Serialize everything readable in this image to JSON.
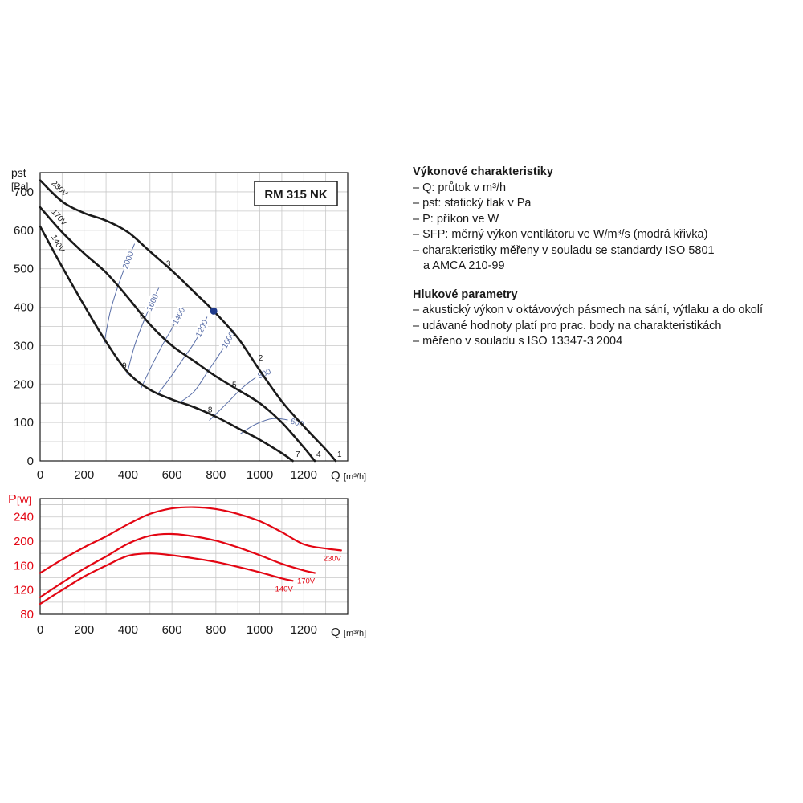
{
  "chart_data": [
    {
      "type": "line",
      "title": "RM 315 NK",
      "xlabel": "Q",
      "xunit": "[m³/h]",
      "ylabel": "pst",
      "yunit": "[Pa]",
      "xlim": [
        0,
        1400
      ],
      "ylim": [
        0,
        750
      ],
      "xticks": [
        0,
        200,
        400,
        600,
        800,
        1000,
        1200
      ],
      "yticks": [
        0,
        100,
        200,
        300,
        400,
        500,
        600,
        700
      ],
      "grid": true,
      "series": [
        {
          "name": "230V",
          "color": "#1a1a1a",
          "x": [
            0,
            100,
            200,
            300,
            400,
            500,
            600,
            700,
            790,
            900,
            1000,
            1100,
            1200,
            1300,
            1345
          ],
          "y": [
            730,
            675,
            645,
            625,
            595,
            545,
            495,
            440,
            390,
            320,
            235,
            155,
            90,
            30,
            0
          ]
        },
        {
          "name": "170V",
          "color": "#1a1a1a",
          "x": [
            0,
            100,
            200,
            300,
            400,
            500,
            600,
            700,
            800,
            900,
            1000,
            1100,
            1200,
            1250
          ],
          "y": [
            660,
            595,
            540,
            490,
            425,
            355,
            300,
            260,
            220,
            185,
            150,
            100,
            35,
            0
          ]
        },
        {
          "name": "140V",
          "color": "#1a1a1a",
          "x": [
            0,
            100,
            200,
            300,
            400,
            500,
            600,
            700,
            800,
            900,
            1000,
            1100,
            1150
          ],
          "y": [
            610,
            505,
            405,
            310,
            230,
            185,
            160,
            140,
            115,
            85,
            55,
            20,
            0
          ]
        }
      ],
      "sfp_curves": [
        {
          "label": "2000",
          "color": "#5a6fa8",
          "x": [
            290,
            320,
            370,
            430
          ],
          "y": [
            300,
            390,
            480,
            565
          ]
        },
        {
          "label": "1600",
          "color": "#5a6fa8",
          "x": [
            395,
            430,
            480,
            540
          ],
          "y": [
            225,
            300,
            375,
            450
          ]
        },
        {
          "label": "1400",
          "color": "#5a6fa8",
          "x": [
            460,
            510,
            560,
            610,
            650
          ],
          "y": [
            190,
            250,
            305,
            355,
            400
          ]
        },
        {
          "label": "1200",
          "color": "#5a6fa8",
          "x": [
            530,
            590,
            650,
            710,
            760
          ],
          "y": [
            170,
            215,
            265,
            315,
            375
          ]
        },
        {
          "label": "1000",
          "color": "#5a6fa8",
          "x": [
            630,
            700,
            760,
            830,
            880
          ],
          "y": [
            150,
            180,
            230,
            290,
            340
          ]
        },
        {
          "label": "800",
          "color": "#5a6fa8",
          "x": [
            770,
            850,
            920,
            990,
            1050
          ],
          "y": [
            105,
            150,
            190,
            220,
            235
          ]
        },
        {
          "label": "600",
          "color": "#5a6fa8",
          "x": [
            910,
            980,
            1060,
            1140,
            1200
          ],
          "y": [
            70,
            95,
            110,
            105,
            95
          ]
        }
      ],
      "markers": [
        {
          "label": "1",
          "x": 1345,
          "y": 0
        },
        {
          "label": "2",
          "x": 1030,
          "y": 255
        },
        {
          "label": "3",
          "x": 610,
          "y": 500
        },
        {
          "label": "4",
          "x": 1250,
          "y": 0
        },
        {
          "label": "5",
          "x": 910,
          "y": 185
        },
        {
          "label": "6",
          "x": 490,
          "y": 365
        },
        {
          "label": "7",
          "x": 1155,
          "y": 0
        },
        {
          "label": "8",
          "x": 800,
          "y": 120
        },
        {
          "label": "9",
          "x": 410,
          "y": 235
        }
      ],
      "operating_point": {
        "x": 790,
        "y": 390,
        "color": "#1f3a8a"
      }
    },
    {
      "type": "line",
      "title": "",
      "xlabel": "Q",
      "xunit": "[m³/h]",
      "ylabel": "P",
      "yunit": "[W]",
      "xlim": [
        0,
        1400
      ],
      "ylim": [
        80,
        270
      ],
      "xticks": [
        0,
        200,
        400,
        600,
        800,
        1000,
        1200
      ],
      "yticks": [
        80,
        120,
        160,
        200,
        240
      ],
      "grid": true,
      "series": [
        {
          "name": "230V",
          "color": "#e30613",
          "x": [
            0,
            100,
            200,
            300,
            400,
            500,
            600,
            700,
            800,
            900,
            1000,
            1100,
            1200,
            1300,
            1370
          ],
          "y": [
            148,
            170,
            190,
            208,
            228,
            245,
            254,
            256,
            253,
            245,
            233,
            215,
            195,
            188,
            185
          ]
        },
        {
          "name": "170V",
          "color": "#e30613",
          "x": [
            0,
            100,
            200,
            300,
            400,
            500,
            600,
            700,
            800,
            900,
            1000,
            1100,
            1200,
            1250
          ],
          "y": [
            108,
            132,
            155,
            175,
            196,
            209,
            212,
            208,
            201,
            190,
            177,
            163,
            152,
            148
          ]
        },
        {
          "name": "140V",
          "color": "#e30613",
          "x": [
            0,
            100,
            200,
            300,
            400,
            500,
            600,
            700,
            800,
            900,
            1000,
            1100,
            1150
          ],
          "y": [
            97,
            120,
            142,
            160,
            176,
            180,
            177,
            172,
            166,
            158,
            149,
            139,
            135
          ]
        }
      ]
    }
  ],
  "info": {
    "title1": "Výkonové charakteristiky",
    "lines1": [
      "– Q: průtok v m³/h",
      "– pst: statický tlak v Pa",
      "– P: příkon ve W",
      "– SFP: měrný výkon ventilátoru ve W/m³/s (modrá křivka)",
      "– charakteristiky měřeny v souladu se standardy ISO 5801",
      "a AMCA 210-99"
    ],
    "title2": "Hlukové parametry",
    "lines2": [
      "– akustický výkon v oktávových pásmech na sání, výtlaku a do okolí",
      "– udávané hodnoty platí pro prac. body na charakteristikách",
      "– měřeno v souladu s ISO 13347-3 2004"
    ]
  }
}
